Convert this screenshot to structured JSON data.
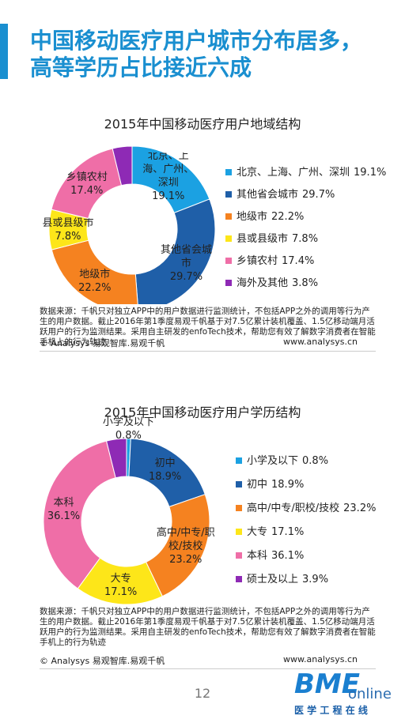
{
  "header": {
    "title_lines": [
      "中国移动医疗用户城市分布居多，",
      "高等学历占比接近六成"
    ]
  },
  "chart_data": [
    {
      "type": "pie",
      "donut": true,
      "title": "2015年中国移动医疗用户地域结构",
      "categories": [
        "北京、上海、广州、深圳",
        "其他省会城市",
        "地级市",
        "县或县级市",
        "乡镇农村",
        "海外及其他"
      ],
      "values": [
        19.1,
        29.7,
        22.2,
        7.8,
        17.4,
        3.8
      ],
      "value_labels": [
        "19.1%",
        "29.7%",
        "22.2%",
        "7.8%",
        "17.4%",
        "3.8%"
      ],
      "colors": [
        "#1ba1e2",
        "#1f5fa8",
        "#f58220",
        "#fde619",
        "#ef6ea7",
        "#8e2ab5"
      ]
    },
    {
      "type": "pie",
      "donut": true,
      "title": "2015年中国移动医疗用户学历结构",
      "categories": [
        "小学及以下",
        "初中",
        "高中/中专/职校/技校",
        "大专",
        "本科",
        "硕士及以上"
      ],
      "values": [
        0.8,
        18.9,
        23.2,
        17.1,
        36.1,
        3.9
      ],
      "value_labels": [
        "0.8%",
        "18.9%",
        "23.2%",
        "17.1%",
        "36.1%",
        "3.9%"
      ],
      "colors": [
        "#1ba1e2",
        "#1f5fa8",
        "#f58220",
        "#fde619",
        "#ef6ea7",
        "#8e2ab5"
      ]
    }
  ],
  "notes": [
    {
      "source": "数据来源：千帆只对独立APP中的用户数据进行监测统计，不包括APP之外的调用等行为产生的用户数据。截止2016年第1季度易观千帆基于对7.5亿累计装机覆盖、1.5亿移动端月活跃用户的行为监测结果。采用自主研发的enfoTech技术，帮助您有效了解数字消费者在智能手机上的行为轨迹",
      "copyright": "© Analysys 易观智库.易观千帆",
      "url": "www.analysys.cn"
    },
    {
      "source": "数据来源：千帆只对独立APP中的用户数据进行监测统计，不包括APP之外的调用等行为产生的用户数据。截止2016年第1季度易观千帆基于对7.5亿累计装机覆盖、1.5亿移动端月活跃用户的行为监测结果。采用自主研发的enfoTech技术，帮助您有效了解数字消费者在智能手机上的行为轨迹",
      "copyright": "© Analysys 易观智库.易观千帆",
      "url": "www.analysys.cn"
    }
  ],
  "page_number": "12",
  "logo": {
    "main": "BME",
    "sub": "online",
    "tagline": "医 学 工 程 在 线"
  }
}
